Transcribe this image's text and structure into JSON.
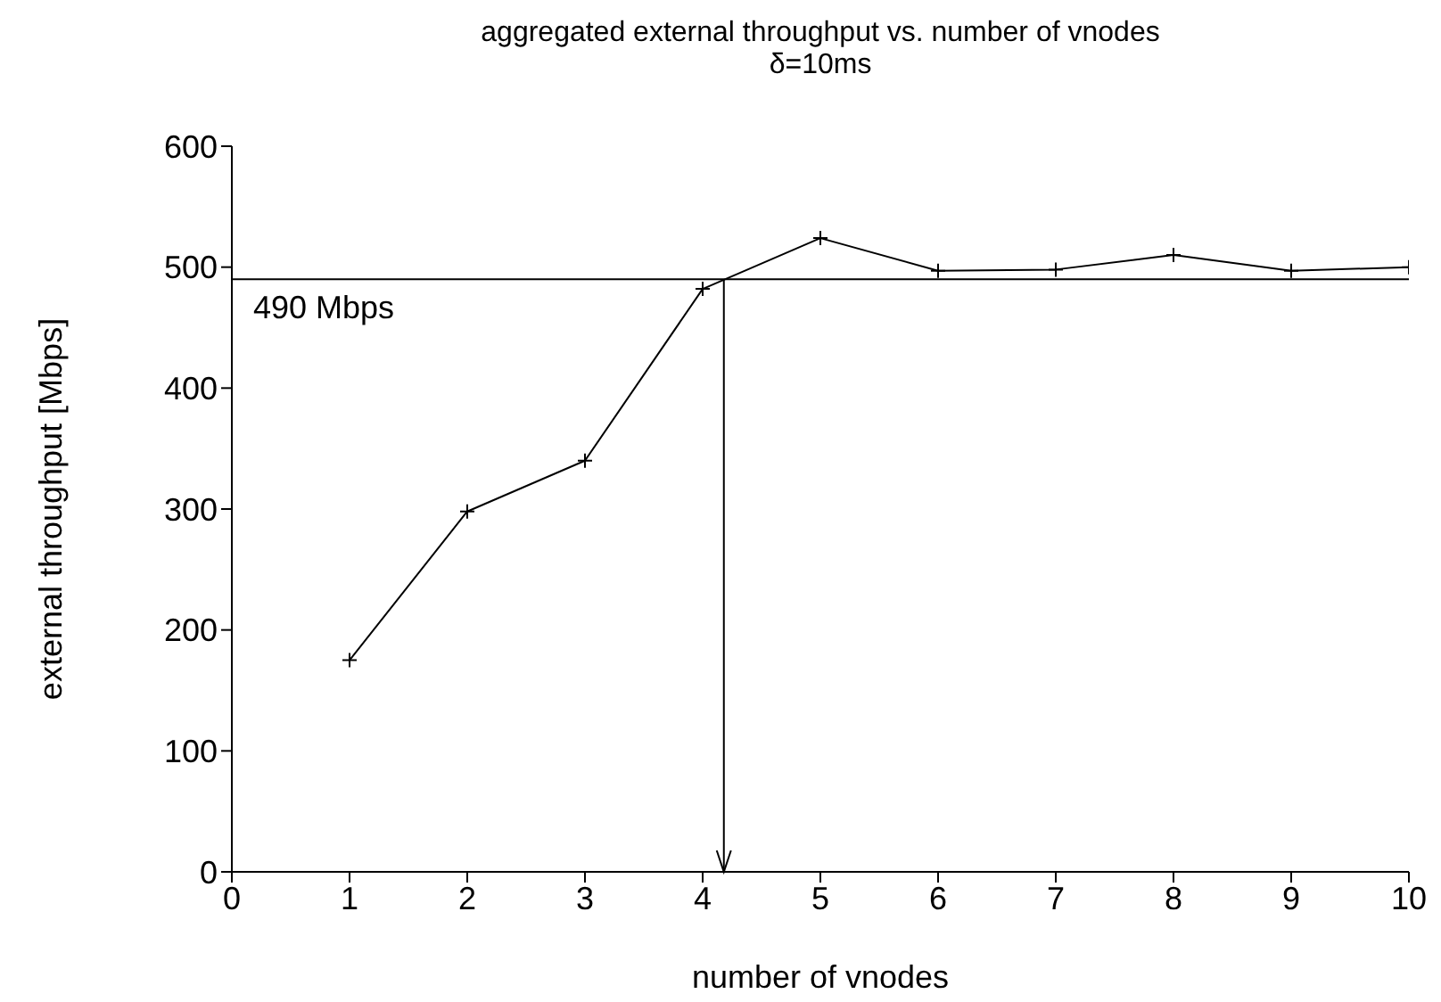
{
  "chart_data": {
    "type": "line",
    "title": "aggregated external throughput vs. number of vnodes",
    "subtitle": "δ=10ms",
    "xlabel": "number of vnodes",
    "ylabel": "external throughput [Mbps]",
    "x": [
      1,
      2,
      3,
      4,
      5,
      6,
      7,
      8,
      9,
      10
    ],
    "series": [
      {
        "color": "#000000",
        "values": [
          175,
          298,
          340,
          482,
          524,
          497,
          498,
          510,
          497,
          500
        ]
      }
    ],
    "xlim": [
      0,
      10
    ],
    "xticks": [
      0,
      1,
      2,
      3,
      4,
      5,
      6,
      7,
      8,
      9,
      10
    ],
    "ylim": [
      0,
      600
    ],
    "yticks": [
      0,
      100,
      200,
      300,
      400,
      500,
      600
    ],
    "ref_lines": [
      {
        "axis": "y",
        "value": 490,
        "label": "490 Mbps",
        "color": "#000000"
      },
      {
        "axis": "x",
        "value": 4.18,
        "color": "#000000"
      }
    ],
    "grid": false,
    "legend": false,
    "marker": "cross",
    "line_style": "solid"
  }
}
